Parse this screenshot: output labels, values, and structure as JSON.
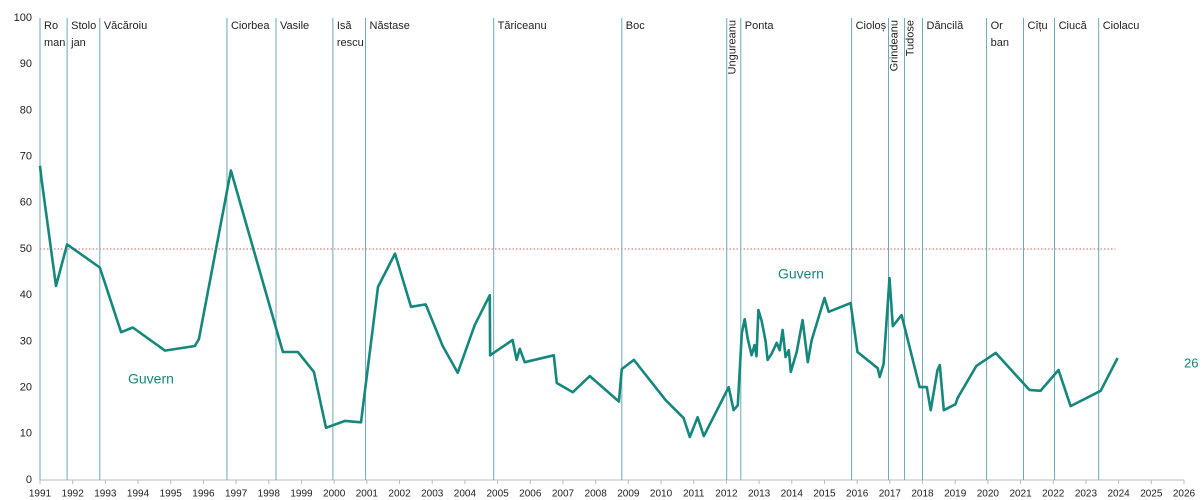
{
  "chart_data": {
    "type": "line",
    "series": [
      {
        "name": "Guvern",
        "color": "#16877c",
        "x": [
          1991.0,
          1991.05,
          1991.49,
          1991.83,
          1992.83,
          1993.48,
          1993.84,
          1994.82,
          1995.74,
          1995.86,
          1996.84,
          1998.43,
          1998.89,
          1999.38,
          1999.75,
          2000.33,
          2000.82,
          2001.34,
          2001.86,
          2002.35,
          2002.8,
          2003.32,
          2003.78,
          2004.3,
          2004.76,
          2004.77,
          2005.46,
          2005.58,
          2005.68,
          2005.83,
          2006.72,
          2006.81,
          2007.3,
          2007.82,
          2008.71,
          2008.8,
          2009.17,
          2010.14,
          2010.69,
          2010.88,
          2011.12,
          2011.31,
          2012.07,
          2012.22,
          2012.35,
          2012.47,
          2012.56,
          2012.65,
          2012.77,
          2012.86,
          2012.92,
          2012.98,
          2013.08,
          2013.2,
          2013.26,
          2013.38,
          2013.54,
          2013.63,
          2013.72,
          2013.81,
          2013.91,
          2013.97,
          2014.15,
          2014.33,
          2014.49,
          2014.61,
          2015.0,
          2015.13,
          2015.8,
          2016.01,
          2016.63,
          2016.69,
          2016.81,
          2016.99,
          2017.09,
          2017.36,
          2017.91,
          2018.13,
          2018.25,
          2018.46,
          2018.53,
          2018.65,
          2019.01,
          2019.07,
          2019.65,
          2020.24,
          2021.27,
          2021.61,
          2022.16,
          2022.53,
          2023.45,
          2023.97
        ],
        "values": [
          68,
          65,
          42,
          51,
          46,
          32,
          33,
          28,
          29,
          30.5,
          67,
          27.7,
          27.7,
          23.4,
          11.3,
          12.8,
          12.5,
          41.8,
          49,
          37.5,
          38,
          29,
          23.2,
          33.5,
          40,
          27,
          30.3,
          26,
          28.4,
          25.5,
          27,
          21,
          19,
          22.5,
          17,
          24,
          26,
          17.3,
          13.4,
          9.3,
          13.6,
          9.5,
          20.1,
          15.1,
          16.2,
          31.8,
          34.8,
          30.7,
          27,
          29.2,
          26.8,
          36.8,
          34.4,
          30,
          26,
          27.3,
          29.7,
          28.1,
          32.5,
          26.6,
          28.1,
          23.4,
          27.7,
          34.6,
          25.5,
          30.3,
          39.4,
          36.4,
          38.3,
          27.7,
          24.2,
          22.3,
          25.1,
          43.7,
          33.3,
          35.7,
          20.1,
          20.1,
          15.1,
          23.8,
          24.9,
          15.1,
          16.4,
          17.7,
          24.7,
          27.5,
          19.5,
          19.3,
          23.8,
          16,
          19.3,
          26.4
        ]
      }
    ],
    "annotations": [
      "Guvern",
      "Guvern"
    ],
    "end_label": "26",
    "reference_line": 50,
    "reference_color": "#e08080",
    "governments": [
      {
        "label": [
          "Ro",
          "man"
        ],
        "x": 1991.0
      },
      {
        "label": [
          "Stolo",
          "jan"
        ],
        "x": 1991.83
      },
      {
        "label": [
          "Văcăroiu"
        ],
        "x": 1992.83
      },
      {
        "label": [
          "Ciorbea"
        ],
        "x": 1996.72
      },
      {
        "label": [
          "Vasile"
        ],
        "x": 1998.22
      },
      {
        "label": [
          "Isă",
          "rescu"
        ],
        "x": 1999.96
      },
      {
        "label": [
          "Năstase"
        ],
        "x": 2000.96
      },
      {
        "label": [
          "Tăriceanu"
        ],
        "x": 2004.88
      },
      {
        "label": [
          "Boc"
        ],
        "x": 2008.8
      },
      {
        "label": [
          "Ungureanu"
        ],
        "x": 2012.01,
        "rotated": true
      },
      {
        "label": [
          "Ponta"
        ],
        "x": 2012.44
      },
      {
        "label": [
          "Cioloș"
        ],
        "x": 2015.83
      },
      {
        "label": [
          "Grindeanu"
        ],
        "x": 2016.96,
        "rotated": true
      },
      {
        "label": [
          "Tudose"
        ],
        "x": 2017.45,
        "rotated": true
      },
      {
        "label": [
          "Dăncilă"
        ],
        "x": 2018.0
      },
      {
        "label": [
          "Or",
          "ban"
        ],
        "x": 2019.96
      },
      {
        "label": [
          "Cîțu"
        ],
        "x": 2021.09
      },
      {
        "label": [
          "Ciucă"
        ],
        "x": 2022.04
      },
      {
        "label": [
          "Ciolacu"
        ],
        "x": 2023.39
      }
    ],
    "government_line_color": "#6aaab4",
    "xlim": [
      1991,
      2026
    ],
    "xticks": [
      1991,
      1992,
      1993,
      1994,
      1995,
      1996,
      1997,
      1998,
      1999,
      2000,
      2001,
      2002,
      2003,
      2004,
      2005,
      2006,
      2007,
      2008,
      2009,
      2010,
      2011,
      2012,
      2013,
      2014,
      2015,
      2016,
      2017,
      2018,
      2019,
      2020,
      2021,
      2022,
      2023,
      2024,
      2025,
      2026
    ],
    "ylim": [
      0,
      100
    ],
    "yticks": [
      0,
      10,
      20,
      30,
      40,
      50,
      60,
      70,
      80,
      90,
      100
    ],
    "grid": false
  }
}
